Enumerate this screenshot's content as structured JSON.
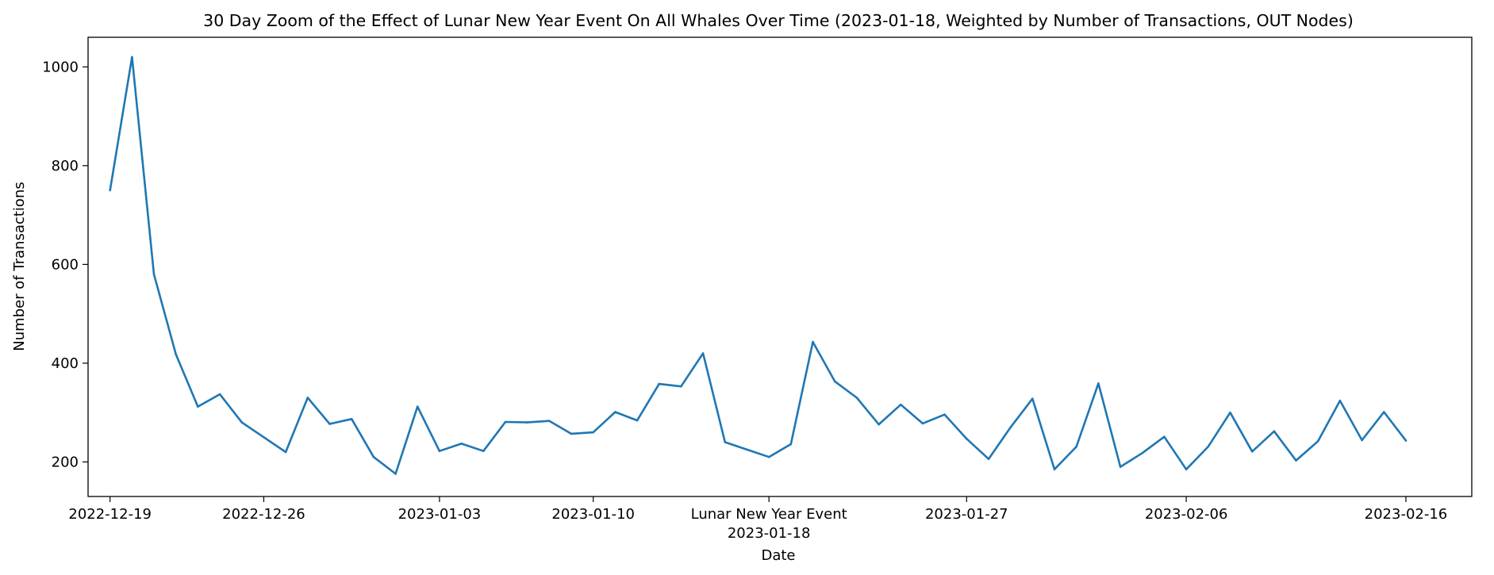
{
  "chart_data": {
    "type": "line",
    "title": "30 Day Zoom of the Effect of Lunar New Year Event On All Whales Over Time (2023-01-18, Weighted by Number of Transactions, OUT Nodes)",
    "xlabel": "Date",
    "ylabel": "Number of Transactions",
    "xlim": [
      "2022-12-18",
      "2023-02-19"
    ],
    "ylim": [
      130,
      1060
    ],
    "grid": false,
    "line_color": "#1f77b4",
    "x_ticks": [
      {
        "date": "2022-12-19",
        "label": "2022-12-19"
      },
      {
        "date": "2022-12-26",
        "label": "2022-12-26"
      },
      {
        "date": "2023-01-03",
        "label": "2023-01-03"
      },
      {
        "date": "2023-01-10",
        "label": "2023-01-10"
      },
      {
        "date": "2023-01-18",
        "label": "Lunar New Year Event",
        "sublabel": "2023-01-18"
      },
      {
        "date": "2023-01-27",
        "label": "2023-01-27"
      },
      {
        "date": "2023-02-06",
        "label": "2023-02-06"
      },
      {
        "date": "2023-02-16",
        "label": "2023-02-16"
      }
    ],
    "y_ticks": [
      200,
      400,
      600,
      800,
      1000
    ],
    "series": [
      {
        "x": [
          "2022-12-19",
          "2022-12-20",
          "2022-12-21",
          "2022-12-22",
          "2022-12-23",
          "2022-12-24",
          "2022-12-25",
          "2022-12-26",
          "2022-12-27",
          "2022-12-28",
          "2022-12-29",
          "2022-12-30",
          "2022-12-31",
          "2023-01-01",
          "2023-01-02",
          "2023-01-03",
          "2023-01-04",
          "2023-01-05",
          "2023-01-06",
          "2023-01-07",
          "2023-01-08",
          "2023-01-09",
          "2023-01-10",
          "2023-01-11",
          "2023-01-12",
          "2023-01-13",
          "2023-01-14",
          "2023-01-15",
          "2023-01-16",
          "2023-01-17",
          "2023-01-18",
          "2023-01-19",
          "2023-01-20",
          "2023-01-21",
          "2023-01-22",
          "2023-01-23",
          "2023-01-24",
          "2023-01-25",
          "2023-01-26",
          "2023-01-27",
          "2023-01-28",
          "2023-01-29",
          "2023-01-30",
          "2023-01-31",
          "2023-02-01",
          "2023-02-02",
          "2023-02-03",
          "2023-02-04",
          "2023-02-05",
          "2023-02-06",
          "2023-02-07",
          "2023-02-08",
          "2023-02-09",
          "2023-02-10",
          "2023-02-11",
          "2023-02-12",
          "2023-02-13",
          "2023-02-14",
          "2023-02-15",
          "2023-02-16"
        ],
        "values": [
          750,
          1020,
          580,
          418,
          312,
          337,
          280,
          250,
          220,
          330,
          277,
          287,
          210,
          176,
          312,
          222,
          237,
          222,
          281,
          280,
          283,
          257,
          260,
          301,
          284,
          358,
          353,
          420,
          240,
          225,
          210,
          236,
          443,
          363,
          330,
          276,
          316,
          278,
          296,
          247,
          206,
          270,
          328,
          185,
          231,
          359,
          190,
          218,
          251,
          185,
          231,
          300,
          221,
          262,
          203,
          242,
          324,
          244,
          301,
          243
        ]
      }
    ]
  }
}
